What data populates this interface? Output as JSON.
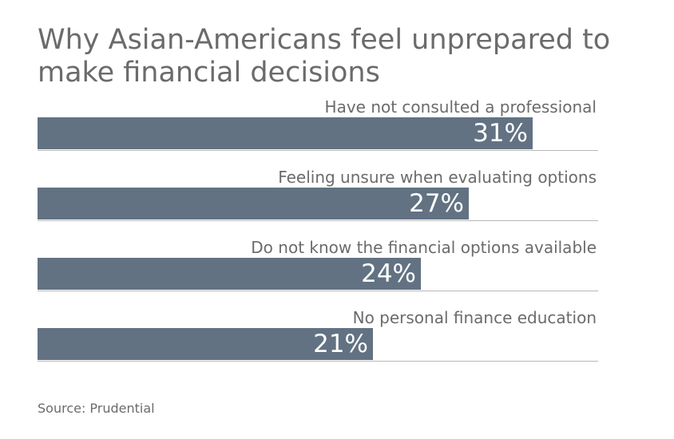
{
  "title": "Why Asian-Americans feel unprepared to make financial decisions",
  "source": "Source: Prudential",
  "colors": {
    "bar": "#627283",
    "rule": "#b8b8b8",
    "text": "#6b6b6b",
    "value_text": "#ffffff"
  },
  "chart_data": {
    "type": "bar",
    "orientation": "horizontal",
    "title": "Why Asian-Americans feel unprepared to make financial decisions",
    "categories": [
      "Have not consulted a professional",
      "Feeling unsure when evaluating options",
      "Do not know the financial options available",
      "No personal finance education"
    ],
    "values": [
      31,
      27,
      24,
      21
    ],
    "value_labels": [
      "31%",
      "27%",
      "24%",
      "21%"
    ],
    "unit": "%",
    "xlim": [
      0,
      35
    ],
    "grid": false,
    "legend": "none"
  }
}
